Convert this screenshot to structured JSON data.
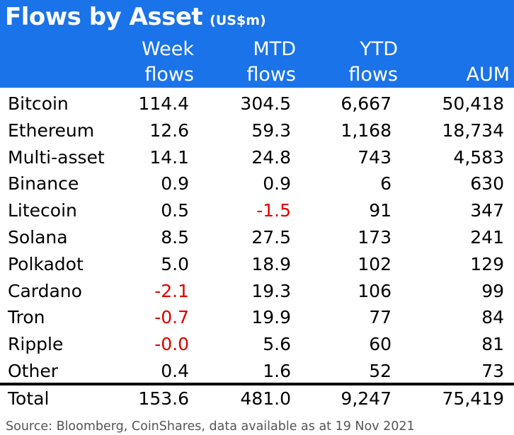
{
  "title": "Flows by Asset",
  "title_unit": "(US$m)",
  "header_color": "#1a73e8",
  "negative_color": "#e00000",
  "columns": {
    "week": [
      "Week",
      "flows"
    ],
    "mtd": [
      "MTD",
      "flows"
    ],
    "ytd": [
      "YTD",
      "flows"
    ],
    "aum": "AUM"
  },
  "rows": [
    {
      "name": "Bitcoin",
      "week": "114.4",
      "mtd": "304.5",
      "ytd": "6,667",
      "aum": "50,418"
    },
    {
      "name": "Ethereum",
      "week": "12.6",
      "mtd": "59.3",
      "ytd": "1,168",
      "aum": "18,734"
    },
    {
      "name": "Multi-asset",
      "week": "14.1",
      "mtd": "24.8",
      "ytd": "743",
      "aum": "4,583"
    },
    {
      "name": "Binance",
      "week": "0.9",
      "mtd": "0.9",
      "ytd": "6",
      "aum": "630"
    },
    {
      "name": "Litecoin",
      "week": "0.5",
      "mtd": "-1.5",
      "ytd": "91",
      "aum": "347"
    },
    {
      "name": "Solana",
      "week": "8.5",
      "mtd": "27.5",
      "ytd": "173",
      "aum": "241"
    },
    {
      "name": "Polkadot",
      "week": "5.0",
      "mtd": "18.9",
      "ytd": "102",
      "aum": "129"
    },
    {
      "name": "Cardano",
      "week": "-2.1",
      "mtd": "19.3",
      "ytd": "106",
      "aum": "99"
    },
    {
      "name": "Tron",
      "week": "-0.7",
      "mtd": "19.9",
      "ytd": "77",
      "aum": "84"
    },
    {
      "name": "Ripple",
      "week": "-0.0",
      "mtd": "5.6",
      "ytd": "60",
      "aum": "81"
    },
    {
      "name": "Other",
      "week": "0.4",
      "mtd": "1.6",
      "ytd": "52",
      "aum": "73"
    }
  ],
  "total": {
    "name": "Total",
    "week": "153.6",
    "mtd": "481.0",
    "ytd": "9,247",
    "aum": "75,419"
  },
  "source": "Source: Bloomberg, CoinShares, data available as at 19 Nov 2021"
}
